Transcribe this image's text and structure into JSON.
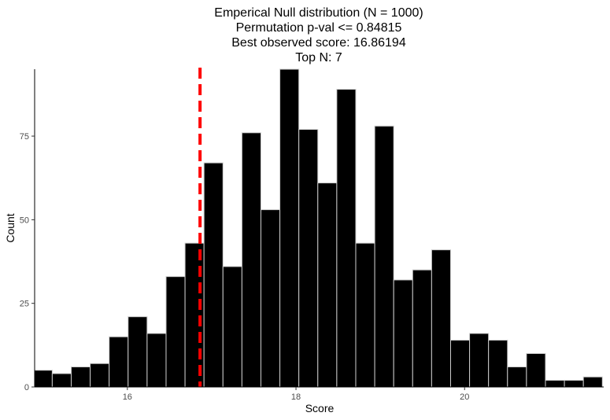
{
  "chart_data": {
    "type": "bar",
    "subtype": "histogram",
    "title_lines": [
      "Emperical Null distribution (N = 1000)",
      "Permutation p-val <= 0.84815",
      "Best observed score: 16.86194",
      "Top N: 7"
    ],
    "xlabel": "Score",
    "ylabel": "Count",
    "xlim": [
      14.9,
      21.65
    ],
    "ylim": [
      0,
      95
    ],
    "x_ticks": [
      16,
      18,
      20
    ],
    "y_ticks": [
      0,
      25,
      50,
      75
    ],
    "bin_width": 0.225,
    "bin_start": 14.884,
    "values": [
      5,
      4,
      6,
      7,
      15,
      21,
      16,
      33,
      43,
      67,
      36,
      76,
      53,
      95,
      77,
      61,
      89,
      43,
      78,
      32,
      35,
      41,
      14,
      16,
      14,
      6,
      10,
      2,
      2,
      3
    ],
    "reference_line": {
      "x": 16.86194,
      "color": "#ff0000",
      "style": "dashed"
    },
    "bar_fill": "#000000",
    "bar_edge": "#cccccc",
    "grid": false
  }
}
